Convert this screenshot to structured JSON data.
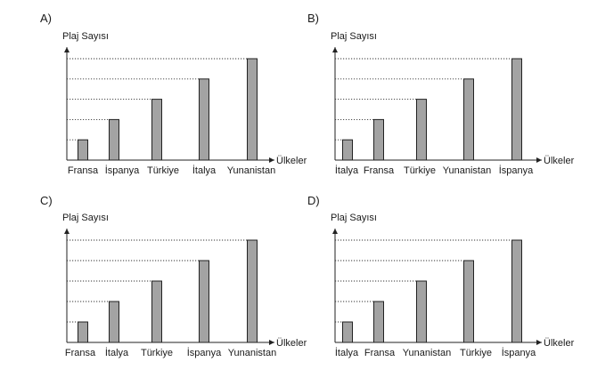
{
  "chart_data": [
    {
      "type": "bar",
      "option": "A)",
      "ylabel": "Plaj Sayısı",
      "xlabel": "Ülkeler",
      "categories": [
        "Fransa",
        "İspanya",
        "Türkiye",
        "İtalya",
        "Yunanistan"
      ],
      "values": [
        1,
        2,
        3,
        4,
        5
      ],
      "ylim": [
        0,
        5
      ],
      "grid": false
    },
    {
      "type": "bar",
      "option": "B)",
      "ylabel": "Plaj Sayısı",
      "xlabel": "Ülkeler",
      "categories": [
        "İtalya",
        "Fransa",
        "Türkiye",
        "Yunanistan",
        "İspanya"
      ],
      "values": [
        1,
        2,
        3,
        4,
        5
      ],
      "ylim": [
        0,
        5
      ],
      "grid": false
    },
    {
      "type": "bar",
      "option": "C)",
      "ylabel": "Plaj Sayısı",
      "xlabel": "Ülkeler",
      "categories": [
        "Fransa",
        "İtalya",
        "Türkiye",
        "İspanya",
        "Yunanistan"
      ],
      "values": [
        1,
        2,
        3,
        4,
        5
      ],
      "ylim": [
        0,
        5
      ],
      "grid": false
    },
    {
      "type": "bar",
      "option": "D)",
      "ylabel": "Plaj Sayısı",
      "xlabel": "Ülkeler",
      "categories": [
        "İtalya",
        "Fransa",
        "Yunanistan",
        "Türkiye",
        "İspanya"
      ],
      "values": [
        1,
        2,
        3,
        4,
        5
      ],
      "ylim": [
        0,
        5
      ],
      "grid": false
    }
  ]
}
